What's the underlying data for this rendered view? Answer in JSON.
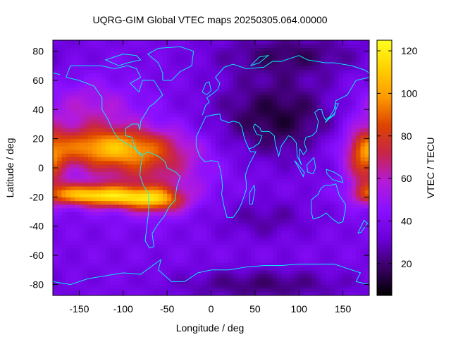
{
  "chart_data": {
    "type": "heatmap",
    "title": "UQRG-GIM Global VTEC maps 20250305.064.00000",
    "xlabel": "Longitude / deg",
    "ylabel": "Latitude / deg",
    "colorbar_label": "VTEC / TECU",
    "xlim": [
      -180,
      180
    ],
    "ylim": [
      -87.5,
      87.5
    ],
    "xticks": [
      -150,
      -100,
      -50,
      0,
      50,
      100,
      150
    ],
    "yticks": [
      -80,
      -60,
      -40,
      -20,
      0,
      20,
      40,
      60,
      80
    ],
    "color_range": [
      5,
      125
    ],
    "colorbar_ticks": [
      20,
      40,
      60,
      80,
      100,
      120
    ],
    "colormap": [
      "#000000",
      "#3a0066",
      "#6a00d8",
      "#8a10ff",
      "#b31bd9",
      "#c8244a",
      "#dd4400",
      "#ff9a00",
      "#ffd000",
      "#ffff20"
    ],
    "coastline_color": "#00ffff",
    "grid": false,
    "approx_vtec_features": {
      "equatorial_anomaly_peak_north": {
        "lon": -115,
        "lat": 15,
        "vtec": 95
      },
      "equatorial_anomaly_peak_south": {
        "lon": -140,
        "lat": -18,
        "vtec": 125
      },
      "south_atlantic_crest": {
        "lon": -60,
        "lat": -22,
        "vtec": 88
      },
      "east_edge_crest": {
        "lon": 175,
        "lat": 5,
        "vtec": 85
      },
      "low_region_asia": {
        "lon": 75,
        "lat": 35,
        "vtec": 10
      },
      "background_midlat": 38
    }
  }
}
